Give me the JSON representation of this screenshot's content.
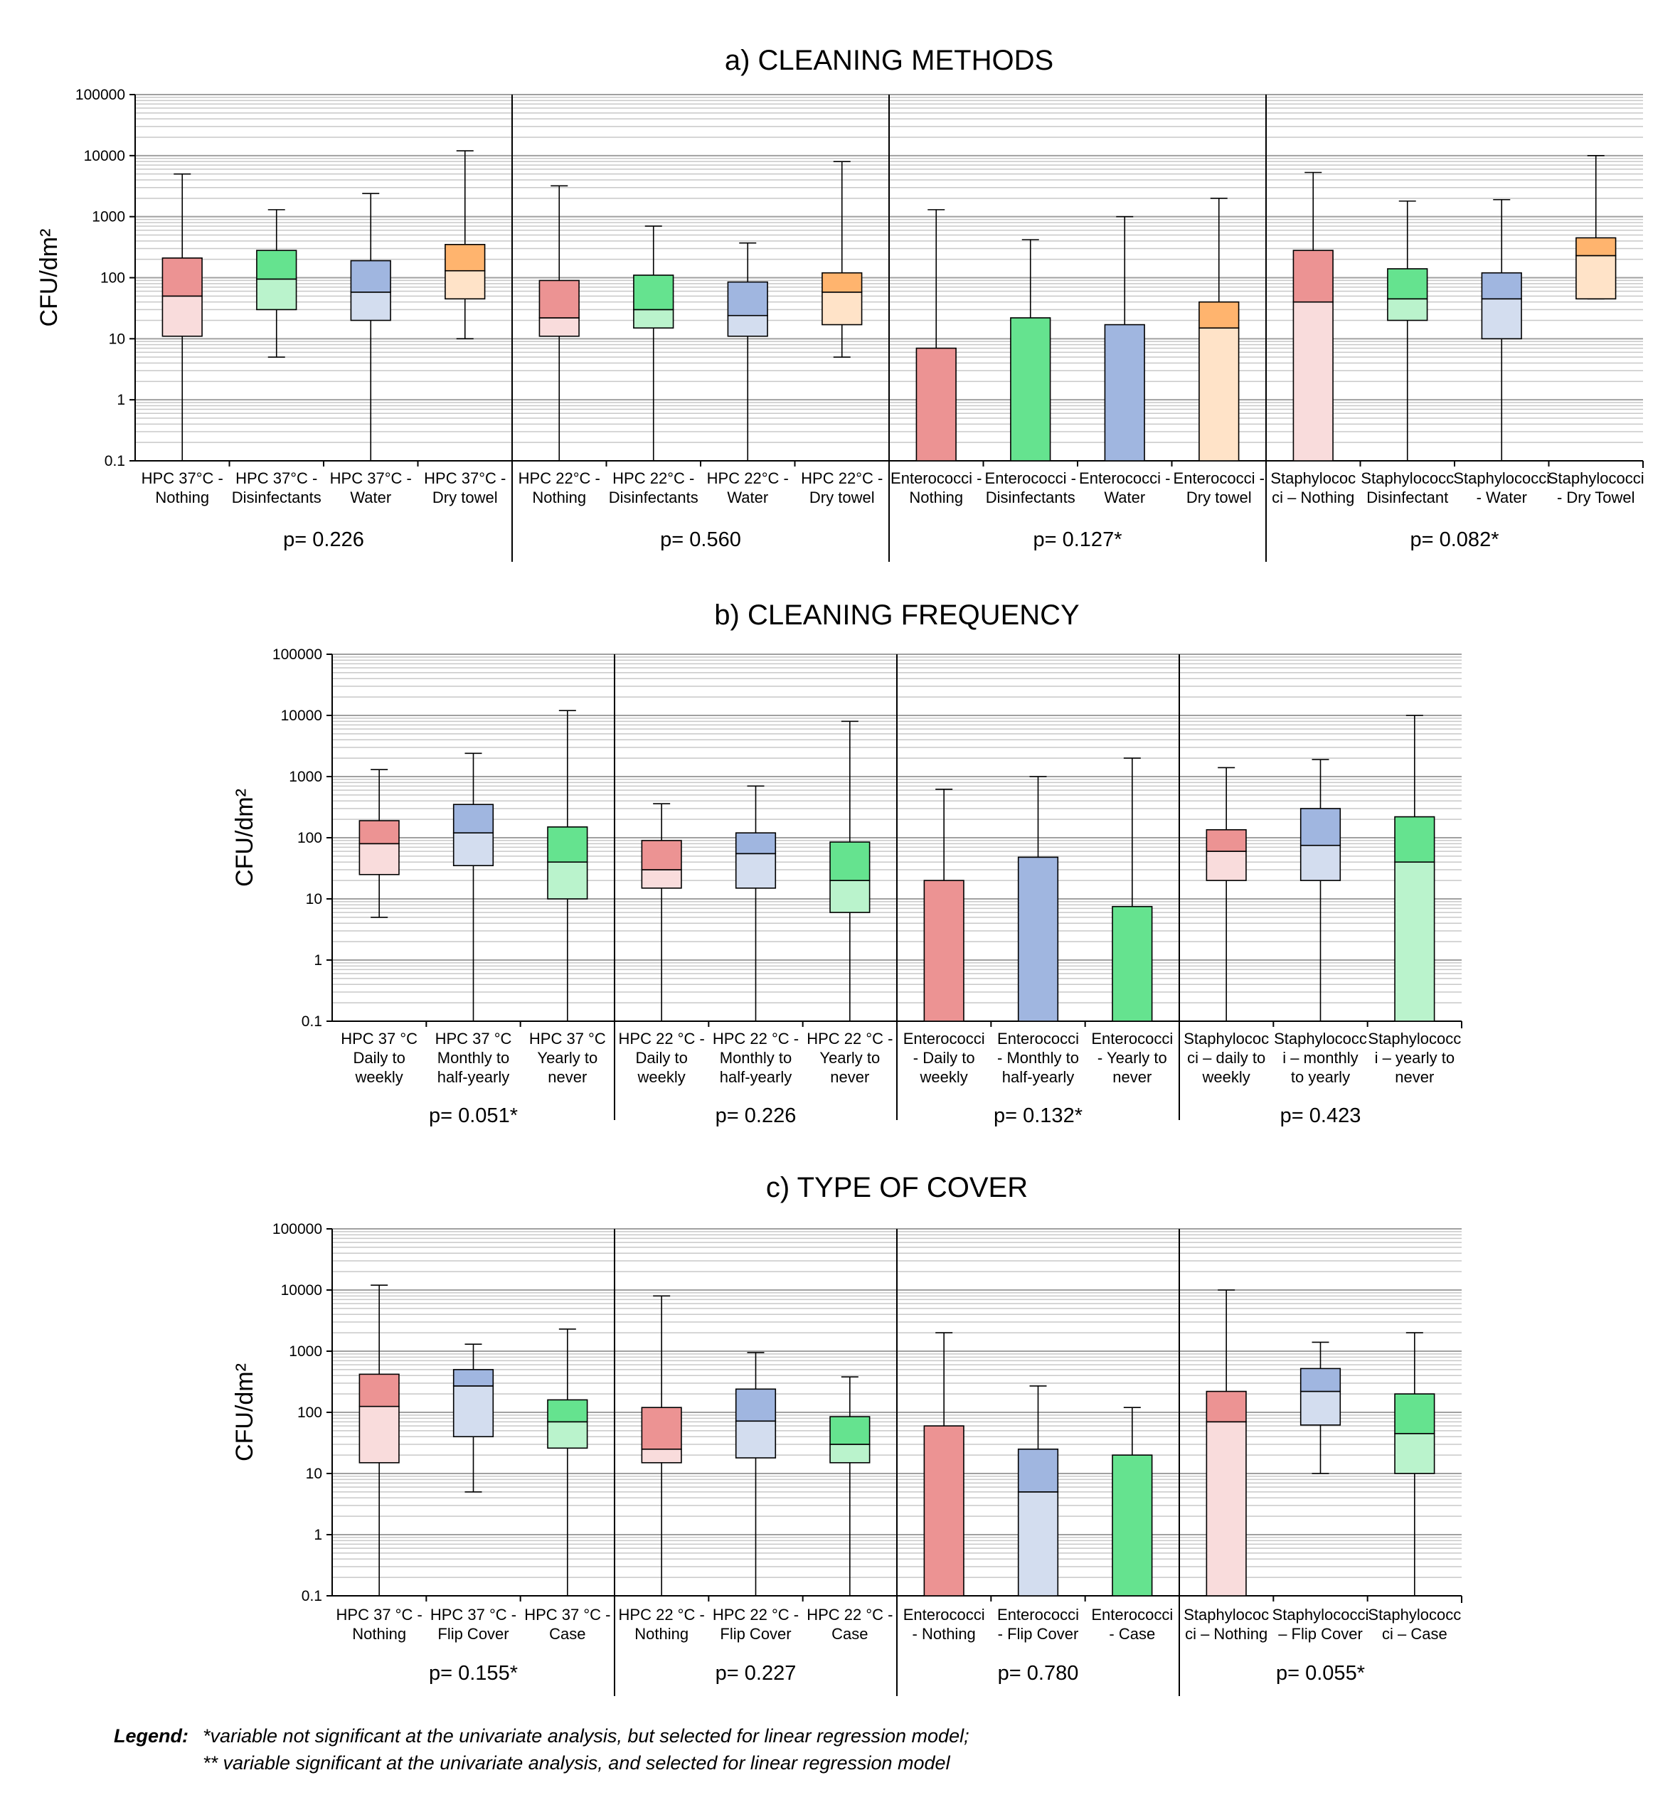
{
  "legend": {
    "label": "Legend:",
    "line1": "*variable not significant at the univariate analysis, but selected for linear regression model;",
    "line2": "** variable significant at the univariate analysis, and selected for linear regression model"
  },
  "chart_data": [
    {
      "type": "boxplot",
      "title": "a) CLEANING METHODS",
      "ylabel": "CFU/dm²",
      "yscale": "log",
      "ylim": [
        0.1,
        100000
      ],
      "yticks": [
        "100000",
        "10000",
        "1000",
        "100",
        "10",
        "1",
        "0.1"
      ],
      "groups": [
        {
          "p_value": "p= 0.226",
          "boxes": [
            {
              "label": [
                "HPC 37°C -",
                "Nothing"
              ],
              "min": 0.1,
              "q1": 11,
              "median": 50,
              "q3": 210,
              "max": 5000,
              "color": "red"
            },
            {
              "label": [
                "HPC 37°C -",
                "Disinfectants"
              ],
              "min": 5,
              "q1": 30,
              "median": 95,
              "q3": 280,
              "max": 1300,
              "color": "green"
            },
            {
              "label": [
                "HPC 37°C -",
                "Water"
              ],
              "min": 0.1,
              "q1": 20,
              "median": 58,
              "q3": 190,
              "max": 2400,
              "color": "blue"
            },
            {
              "label": [
                "HPC 37°C -",
                "Dry towel"
              ],
              "min": 10,
              "q1": 45,
              "median": 130,
              "q3": 350,
              "max": 12000,
              "color": "orange"
            }
          ]
        },
        {
          "p_value": "p= 0.560",
          "boxes": [
            {
              "label": [
                "HPC 22°C -",
                "Nothing"
              ],
              "min": 0.1,
              "q1": 11,
              "median": 22,
              "q3": 90,
              "max": 3200,
              "color": "red"
            },
            {
              "label": [
                "HPC 22°C -",
                "Disinfectants"
              ],
              "min": 0.1,
              "q1": 15,
              "median": 30,
              "q3": 110,
              "max": 700,
              "color": "green"
            },
            {
              "label": [
                "HPC 22°C -",
                "Water"
              ],
              "min": 0.1,
              "q1": 11,
              "median": 24,
              "q3": 85,
              "max": 370,
              "color": "blue"
            },
            {
              "label": [
                "HPC 22°C -",
                "Dry towel"
              ],
              "min": 5,
              "q1": 17,
              "median": 58,
              "q3": 120,
              "max": 8000,
              "color": "orange"
            }
          ]
        },
        {
          "p_value": "p= 0.127*",
          "boxes": [
            {
              "label": [
                "Enterococci -",
                "Nothing"
              ],
              "min": 0.1,
              "q1": 0.1,
              "median": 0.1,
              "q3": 7,
              "max": 1300,
              "color": "red"
            },
            {
              "label": [
                "Enterococci -",
                "Disinfectants"
              ],
              "min": 0.1,
              "q1": 0.1,
              "median": 0.1,
              "q3": 22,
              "max": 420,
              "color": "green"
            },
            {
              "label": [
                "Enterococci -",
                "Water"
              ],
              "min": 0.1,
              "q1": 0.1,
              "median": 0.1,
              "q3": 17,
              "max": 1000,
              "color": "blue"
            },
            {
              "label": [
                "Enterococci -",
                "Dry towel"
              ],
              "min": 0.1,
              "q1": 0.1,
              "median": 15,
              "q3": 40,
              "max": 2000,
              "color": "orange"
            }
          ]
        },
        {
          "p_value": "p= 0.082*",
          "boxes": [
            {
              "label": [
                "Staphylococ",
                "ci – Nothing"
              ],
              "min": 0.1,
              "q1": 0.1,
              "median": 40,
              "q3": 280,
              "max": 5300,
              "color": "red"
            },
            {
              "label": [
                "Staphylococc",
                "Disinfectant"
              ],
              "min": 0.1,
              "q1": 20,
              "median": 45,
              "q3": 140,
              "max": 1800,
              "color": "green"
            },
            {
              "label": [
                "Staphylococci",
                "- Water"
              ],
              "min": 0.1,
              "q1": 10,
              "median": 45,
              "q3": 120,
              "max": 1900,
              "color": "blue"
            },
            {
              "label": [
                "Staphylococci",
                "- Dry Towel"
              ],
              "min": 45,
              "q1": 45,
              "median": 230,
              "q3": 450,
              "max": 10000,
              "color": "orange"
            }
          ]
        }
      ]
    },
    {
      "type": "boxplot",
      "title": "b) CLEANING FREQUENCY",
      "ylabel": "CFU/dm²",
      "yscale": "log",
      "ylim": [
        0.1,
        100000
      ],
      "yticks": [
        "100000",
        "10000",
        "1000",
        "100",
        "10",
        "1",
        "0.1"
      ],
      "groups": [
        {
          "p_value": "p= 0.051*",
          "boxes": [
            {
              "label": [
                "HPC 37 °C",
                "Daily to",
                "weekly"
              ],
              "min": 5,
              "q1": 25,
              "median": 80,
              "q3": 190,
              "max": 1300,
              "color": "red"
            },
            {
              "label": [
                "HPC 37 °C",
                "Monthly to",
                "half-yearly"
              ],
              "min": 0.1,
              "q1": 35,
              "median": 120,
              "q3": 350,
              "max": 2400,
              "color": "blue"
            },
            {
              "label": [
                "HPC 37 °C",
                "Yearly to",
                "never"
              ],
              "min": 0.1,
              "q1": 10,
              "median": 40,
              "q3": 150,
              "max": 12000,
              "color": "green"
            }
          ]
        },
        {
          "p_value": "p= 0.226",
          "boxes": [
            {
              "label": [
                "HPC 22 °C -",
                "Daily to",
                "weekly"
              ],
              "min": 0.1,
              "q1": 15,
              "median": 30,
              "q3": 90,
              "max": 360,
              "color": "red"
            },
            {
              "label": [
                "HPC 22 °C -",
                "Monthly to",
                "half-yearly"
              ],
              "min": 0.1,
              "q1": 15,
              "median": 55,
              "q3": 120,
              "max": 700,
              "color": "blue"
            },
            {
              "label": [
                "HPC 22 °C -",
                "Yearly to",
                "never"
              ],
              "min": 0.1,
              "q1": 6,
              "median": 20,
              "q3": 85,
              "max": 8000,
              "color": "green"
            }
          ]
        },
        {
          "p_value": "p= 0.132*",
          "boxes": [
            {
              "label": [
                "Enterococci",
                "- Daily to",
                "weekly"
              ],
              "min": 0.1,
              "q1": 0.1,
              "median": 0.1,
              "q3": 20,
              "max": 620,
              "color": "red"
            },
            {
              "label": [
                "Enterococci",
                "- Monthly to",
                "half-yearly"
              ],
              "min": 0.1,
              "q1": 0.1,
              "median": 0.1,
              "q3": 48,
              "max": 1000,
              "color": "blue"
            },
            {
              "label": [
                "Enterococci",
                "- Yearly to",
                "never"
              ],
              "min": 0.1,
              "q1": 0.1,
              "median": 0.1,
              "q3": 7.5,
              "max": 2000,
              "color": "green"
            }
          ]
        },
        {
          "p_value": "p= 0.423",
          "boxes": [
            {
              "label": [
                "Staphylococ",
                "ci – daily to",
                "weekly"
              ],
              "min": 0.1,
              "q1": 20,
              "median": 60,
              "q3": 135,
              "max": 1400,
              "color": "red"
            },
            {
              "label": [
                "Staphylococc",
                "i – monthly",
                "to yearly"
              ],
              "min": 0.1,
              "q1": 20,
              "median": 75,
              "q3": 300,
              "max": 1900,
              "color": "blue"
            },
            {
              "label": [
                "Staphylococc",
                "i – yearly to",
                "never"
              ],
              "min": 0.1,
              "q1": 0.1,
              "median": 40,
              "q3": 220,
              "max": 10000,
              "color": "green"
            }
          ]
        }
      ]
    },
    {
      "type": "boxplot",
      "title": "c) TYPE OF COVER",
      "ylabel": "CFU/dm²",
      "yscale": "log",
      "ylim": [
        0.1,
        100000
      ],
      "yticks": [
        "100000",
        "10000",
        "1000",
        "100",
        "10",
        "1",
        "0.1"
      ],
      "groups": [
        {
          "p_value": "p= 0.155*",
          "boxes": [
            {
              "label": [
                "HPC 37 °C -",
                "Nothing"
              ],
              "min": 0.1,
              "q1": 15,
              "median": 125,
              "q3": 420,
              "max": 12000,
              "color": "red"
            },
            {
              "label": [
                "HPC 37 °C -",
                "Flip Cover"
              ],
              "min": 5,
              "q1": 40,
              "median": 270,
              "q3": 500,
              "max": 1300,
              "color": "blue"
            },
            {
              "label": [
                "HPC 37 °C -",
                "Case"
              ],
              "min": 0.1,
              "q1": 26,
              "median": 70,
              "q3": 160,
              "max": 2300,
              "color": "green"
            }
          ]
        },
        {
          "p_value": "p= 0.227",
          "boxes": [
            {
              "label": [
                "HPC 22 °C -",
                "Nothing"
              ],
              "min": 0.1,
              "q1": 15,
              "median": 25,
              "q3": 120,
              "max": 8000,
              "color": "red"
            },
            {
              "label": [
                "HPC 22 °C -",
                "Flip Cover"
              ],
              "min": 0.1,
              "q1": 18,
              "median": 72,
              "q3": 240,
              "max": 950,
              "color": "blue"
            },
            {
              "label": [
                "HPC 22 °C -",
                "Case"
              ],
              "min": 0.1,
              "q1": 15,
              "median": 30,
              "q3": 85,
              "max": 380,
              "color": "green"
            }
          ]
        },
        {
          "p_value": "p= 0.780",
          "boxes": [
            {
              "label": [
                "Enterococci",
                "- Nothing"
              ],
              "min": 0.1,
              "q1": 0.1,
              "median": 0.1,
              "q3": 60,
              "max": 2000,
              "color": "red"
            },
            {
              "label": [
                "Enterococci",
                "- Flip Cover"
              ],
              "min": 0.1,
              "q1": 0.1,
              "median": 5,
              "q3": 25,
              "max": 270,
              "color": "blue"
            },
            {
              "label": [
                "Enterococci",
                "- Case"
              ],
              "min": 0.1,
              "q1": 0.1,
              "median": 0.1,
              "q3": 20,
              "max": 120,
              "color": "green"
            }
          ]
        },
        {
          "p_value": "p= 0.055*",
          "boxes": [
            {
              "label": [
                "Staphylococ",
                "ci – Nothing"
              ],
              "min": 0.1,
              "q1": 0.1,
              "median": 70,
              "q3": 220,
              "max": 10000,
              "color": "red"
            },
            {
              "label": [
                "Staphylococci",
                "– Flip Cover"
              ],
              "min": 10,
              "q1": 62,
              "median": 220,
              "q3": 520,
              "max": 1400,
              "color": "blue"
            },
            {
              "label": [
                "Staphylococc",
                "ci – Case"
              ],
              "min": 0.1,
              "q1": 10,
              "median": 45,
              "q3": 200,
              "max": 2000,
              "color": "green"
            }
          ]
        }
      ]
    }
  ],
  "colors": {
    "red": {
      "dark": "#ec9393",
      "light": "#f9dcdc"
    },
    "green": {
      "dark": "#65e38f",
      "light": "#baf3cc"
    },
    "blue": {
      "dark": "#a0b6e0",
      "light": "#d3ddef"
    },
    "orange": {
      "dark": "#ffb46e",
      "light": "#ffe3c8"
    }
  }
}
